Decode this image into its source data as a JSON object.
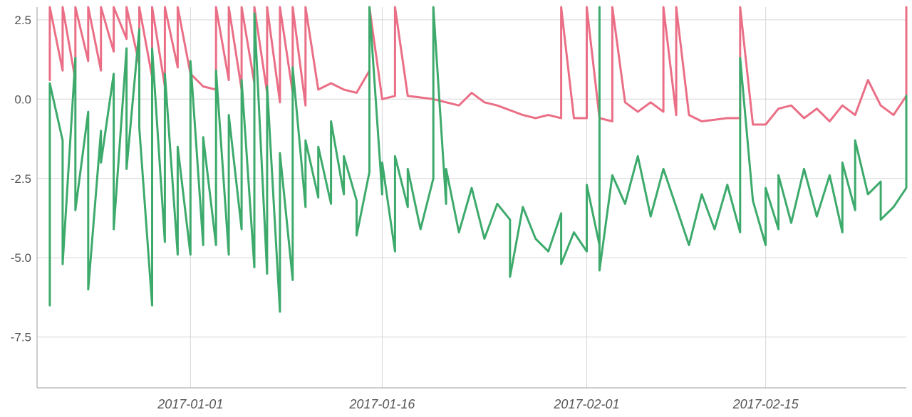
{
  "chart_data": {
    "type": "line",
    "title": "",
    "xlabel": "",
    "ylabel": "",
    "x_axis_type": "date",
    "xlim": [
      "2016-12-20",
      "2017-02-26"
    ],
    "ylim": [
      -9.1,
      2.9
    ],
    "grid": true,
    "legend": "none",
    "x_ticks": [
      "2017-01-01",
      "2017-01-16",
      "2017-02-01",
      "2017-02-15"
    ],
    "y_ticks": [
      2.5,
      0.0,
      -2.5,
      -5.0,
      -7.5
    ],
    "y_tick_labels": [
      "2.5",
      "0.0",
      "-2.5",
      "-5.0",
      "-7.5"
    ],
    "series": [
      {
        "color": "#ea6f86",
        "points": [
          [
            "2016-12-21",
            0.6
          ],
          [
            "2016-12-21",
            2.9
          ],
          [
            "2016-12-22",
            0.9
          ],
          [
            "2016-12-22",
            2.9
          ],
          [
            "2016-12-23",
            0.6
          ],
          [
            "2016-12-23",
            2.9
          ],
          [
            "2016-12-24",
            1.2
          ],
          [
            "2016-12-24",
            2.9
          ],
          [
            "2016-12-25",
            0.9
          ],
          [
            "2016-12-25",
            2.9
          ],
          [
            "2016-12-26",
            1.5
          ],
          [
            "2016-12-26",
            2.9
          ],
          [
            "2016-12-27",
            1.9
          ],
          [
            "2016-12-27",
            2.9
          ],
          [
            "2016-12-28",
            1.1
          ],
          [
            "2016-12-28",
            2.9
          ],
          [
            "2016-12-29",
            0.7
          ],
          [
            "2016-12-29",
            2.9
          ],
          [
            "2016-12-30",
            0.4
          ],
          [
            "2016-12-30",
            2.9
          ],
          [
            "2016-12-31",
            1.0
          ],
          [
            "2016-12-31",
            2.9
          ],
          [
            "2017-01-01",
            0.8
          ],
          [
            "2017-01-02",
            0.4
          ],
          [
            "2017-01-03",
            0.3
          ],
          [
            "2017-01-03",
            2.9
          ],
          [
            "2017-01-04",
            0.6
          ],
          [
            "2017-01-04",
            2.9
          ],
          [
            "2017-01-05",
            0.3
          ],
          [
            "2017-01-05",
            2.9
          ],
          [
            "2017-01-06",
            0.5
          ],
          [
            "2017-01-06",
            2.9
          ],
          [
            "2017-01-07",
            0.2
          ],
          [
            "2017-01-07",
            2.9
          ],
          [
            "2017-01-08",
            -0.1
          ],
          [
            "2017-01-08",
            2.9
          ],
          [
            "2017-01-09",
            0.2
          ],
          [
            "2017-01-09",
            2.9
          ],
          [
            "2017-01-10",
            -0.2
          ],
          [
            "2017-01-10",
            2.9
          ],
          [
            "2017-01-11",
            0.3
          ],
          [
            "2017-01-12",
            0.5
          ],
          [
            "2017-01-13",
            0.3
          ],
          [
            "2017-01-14",
            0.2
          ],
          [
            "2017-01-15",
            0.9
          ],
          [
            "2017-01-15",
            2.9
          ],
          [
            "2017-01-16",
            0.0
          ],
          [
            "2017-01-17",
            0.1
          ],
          [
            "2017-01-17",
            2.9
          ],
          [
            "2017-01-18",
            0.1
          ],
          [
            "2017-01-20",
            0.0
          ],
          [
            "2017-01-22",
            -0.2
          ],
          [
            "2017-01-23",
            0.2
          ],
          [
            "2017-01-24",
            -0.1
          ],
          [
            "2017-01-25",
            -0.2
          ],
          [
            "2017-01-27",
            -0.5
          ],
          [
            "2017-01-28",
            -0.6
          ],
          [
            "2017-01-29",
            -0.5
          ],
          [
            "2017-01-30",
            -0.6
          ],
          [
            "2017-01-30",
            2.9
          ],
          [
            "2017-01-31",
            -0.6
          ],
          [
            "2017-02-01",
            -0.6
          ],
          [
            "2017-02-01",
            2.9
          ],
          [
            "2017-02-02",
            -0.6
          ],
          [
            "2017-02-03",
            -0.7
          ],
          [
            "2017-02-03",
            2.9
          ],
          [
            "2017-02-04",
            -0.1
          ],
          [
            "2017-02-05",
            -0.4
          ],
          [
            "2017-02-06",
            -0.1
          ],
          [
            "2017-02-07",
            -0.4
          ],
          [
            "2017-02-07",
            2.9
          ],
          [
            "2017-02-08",
            -0.5
          ],
          [
            "2017-02-08",
            2.9
          ],
          [
            "2017-02-09",
            -0.5
          ],
          [
            "2017-02-10",
            -0.7
          ],
          [
            "2017-02-12",
            -0.6
          ],
          [
            "2017-02-13",
            -0.6
          ],
          [
            "2017-02-13",
            2.9
          ],
          [
            "2017-02-14",
            -0.8
          ],
          [
            "2017-02-15",
            -0.8
          ],
          [
            "2017-02-16",
            -0.3
          ],
          [
            "2017-02-17",
            -0.2
          ],
          [
            "2017-02-18",
            -0.6
          ],
          [
            "2017-02-19",
            -0.3
          ],
          [
            "2017-02-20",
            -0.7
          ],
          [
            "2017-02-21",
            -0.2
          ],
          [
            "2017-02-22",
            -0.5
          ],
          [
            "2017-02-23",
            0.6
          ],
          [
            "2017-02-24",
            -0.2
          ],
          [
            "2017-02-25",
            -0.5
          ],
          [
            "2017-02-26",
            0.1
          ],
          [
            "2017-02-26",
            2.9
          ]
        ]
      },
      {
        "color": "#3daa6c",
        "points": [
          [
            "2016-12-21",
            -6.5
          ],
          [
            "2016-12-21",
            0.5
          ],
          [
            "2016-12-22",
            -1.3
          ],
          [
            "2016-12-22",
            -5.2
          ],
          [
            "2016-12-23",
            1.3
          ],
          [
            "2016-12-23",
            -3.5
          ],
          [
            "2016-12-24",
            -0.4
          ],
          [
            "2016-12-24",
            -6.0
          ],
          [
            "2016-12-25",
            -1.0
          ],
          [
            "2016-12-25",
            -2.0
          ],
          [
            "2016-12-26",
            0.8
          ],
          [
            "2016-12-26",
            -4.1
          ],
          [
            "2016-12-27",
            1.6
          ],
          [
            "2016-12-27",
            -2.2
          ],
          [
            "2016-12-28",
            2.2
          ],
          [
            "2016-12-28",
            -0.9
          ],
          [
            "2016-12-29",
            -6.5
          ],
          [
            "2016-12-29",
            1.6
          ],
          [
            "2016-12-30",
            -4.5
          ],
          [
            "2016-12-30",
            0.8
          ],
          [
            "2016-12-31",
            -4.9
          ],
          [
            "2016-12-31",
            -1.5
          ],
          [
            "2017-01-01",
            -4.9
          ],
          [
            "2017-01-01",
            1.2
          ],
          [
            "2017-01-02",
            -4.6
          ],
          [
            "2017-01-02",
            -1.2
          ],
          [
            "2017-01-03",
            -4.6
          ],
          [
            "2017-01-03",
            0.9
          ],
          [
            "2017-01-04",
            -4.9
          ],
          [
            "2017-01-04",
            -0.5
          ],
          [
            "2017-01-05",
            -4.1
          ],
          [
            "2017-01-05",
            0.6
          ],
          [
            "2017-01-06",
            -5.3
          ],
          [
            "2017-01-06",
            2.7
          ],
          [
            "2017-01-07",
            -5.5
          ],
          [
            "2017-01-07",
            0.4
          ],
          [
            "2017-01-08",
            -6.7
          ],
          [
            "2017-01-08",
            -1.7
          ],
          [
            "2017-01-09",
            -5.7
          ],
          [
            "2017-01-09",
            1.0
          ],
          [
            "2017-01-10",
            -3.4
          ],
          [
            "2017-01-10",
            -1.3
          ],
          [
            "2017-01-11",
            -3.1
          ],
          [
            "2017-01-11",
            -1.5
          ],
          [
            "2017-01-12",
            -3.3
          ],
          [
            "2017-01-12",
            -0.7
          ],
          [
            "2017-01-13",
            -3.0
          ],
          [
            "2017-01-13",
            -1.8
          ],
          [
            "2017-01-14",
            -3.2
          ],
          [
            "2017-01-14",
            -4.3
          ],
          [
            "2017-01-15",
            -2.3
          ],
          [
            "2017-01-15",
            2.9
          ],
          [
            "2017-01-16",
            -3.0
          ],
          [
            "2017-01-16",
            -2.0
          ],
          [
            "2017-01-17",
            -4.8
          ],
          [
            "2017-01-17",
            -1.8
          ],
          [
            "2017-01-18",
            -3.4
          ],
          [
            "2017-01-18",
            -2.2
          ],
          [
            "2017-01-19",
            -4.1
          ],
          [
            "2017-01-20",
            -2.5
          ],
          [
            "2017-01-20",
            2.9
          ],
          [
            "2017-01-21",
            -3.3
          ],
          [
            "2017-01-21",
            -2.2
          ],
          [
            "2017-01-22",
            -4.2
          ],
          [
            "2017-01-23",
            -2.8
          ],
          [
            "2017-01-24",
            -4.4
          ],
          [
            "2017-01-25",
            -3.3
          ],
          [
            "2017-01-26",
            -3.8
          ],
          [
            "2017-01-26",
            -5.6
          ],
          [
            "2017-01-27",
            -3.4
          ],
          [
            "2017-01-28",
            -4.4
          ],
          [
            "2017-01-29",
            -4.8
          ],
          [
            "2017-01-30",
            -3.6
          ],
          [
            "2017-01-30",
            -5.2
          ],
          [
            "2017-01-31",
            -4.2
          ],
          [
            "2017-02-01",
            -4.8
          ],
          [
            "2017-02-01",
            -2.7
          ],
          [
            "2017-02-02",
            -4.6
          ],
          [
            "2017-02-02",
            2.9
          ],
          [
            "2017-02-02",
            -5.4
          ],
          [
            "2017-02-03",
            -2.4
          ],
          [
            "2017-02-04",
            -3.3
          ],
          [
            "2017-02-05",
            -1.8
          ],
          [
            "2017-02-06",
            -3.7
          ],
          [
            "2017-02-07",
            -2.2
          ],
          [
            "2017-02-08",
            -3.4
          ],
          [
            "2017-02-09",
            -4.6
          ],
          [
            "2017-02-10",
            -3.0
          ],
          [
            "2017-02-11",
            -4.1
          ],
          [
            "2017-02-12",
            -2.7
          ],
          [
            "2017-02-13",
            -4.2
          ],
          [
            "2017-02-13",
            1.3
          ],
          [
            "2017-02-14",
            -3.2
          ],
          [
            "2017-02-15",
            -4.6
          ],
          [
            "2017-02-15",
            -2.8
          ],
          [
            "2017-02-16",
            -4.1
          ],
          [
            "2017-02-16",
            -2.4
          ],
          [
            "2017-02-17",
            -3.9
          ],
          [
            "2017-02-18",
            -2.2
          ],
          [
            "2017-02-19",
            -3.7
          ],
          [
            "2017-02-20",
            -2.4
          ],
          [
            "2017-02-21",
            -4.2
          ],
          [
            "2017-02-21",
            -2.0
          ],
          [
            "2017-02-22",
            -3.5
          ],
          [
            "2017-02-22",
            -1.3
          ],
          [
            "2017-02-23",
            -3.0
          ],
          [
            "2017-02-24",
            -2.6
          ],
          [
            "2017-02-24",
            -3.8
          ],
          [
            "2017-02-25",
            -3.4
          ],
          [
            "2017-02-26",
            -2.8
          ],
          [
            "2017-02-26",
            0.1
          ]
        ]
      }
    ]
  }
}
